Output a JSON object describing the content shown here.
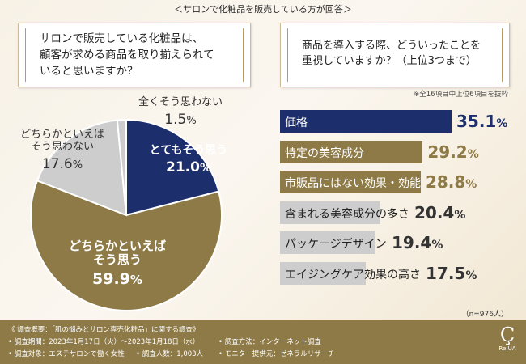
{
  "header": "＜サロンで化粧品を販売している方が回答＞",
  "question_left": {
    "lines": [
      "サロンで販売している化粧品は、",
      "顧客が求める商品を取り揃えられて",
      "いると思いますか？"
    ]
  },
  "question_right": {
    "lines": [
      "商品を導入する際、どういったことを",
      "重視していますか？（上位3つまで）"
    ]
  },
  "note": "※全16項目中上位6項目を抜粋",
  "colors": {
    "navy": "#1c2f6c",
    "gold": "#8e7a47",
    "gray": "#cdcdcd"
  },
  "chart_data": [
    {
      "type": "pie",
      "slices": [
        {
          "label": "とてもそう思う",
          "value": 21.0,
          "value_text": "21.0",
          "color": "navy"
        },
        {
          "label": "どちらかといえばそう思う",
          "label_lines": [
            "どちらかといえば",
            "そう思う"
          ],
          "value": 59.9,
          "value_text": "59.9",
          "color": "gold"
        },
        {
          "label": "どちらかといえばそう思わない",
          "label_lines": [
            "どちらかといえば",
            "そう思わない"
          ],
          "value": 17.6,
          "value_text": "17.6",
          "color": "gray"
        },
        {
          "label": "全くそう思わない",
          "value": 1.5,
          "value_text": "1.5",
          "color": "gray"
        }
      ],
      "start_angle_deg": 0,
      "direction": "clockwise",
      "percent_sign": "%"
    },
    {
      "type": "bar",
      "orientation": "horizontal",
      "categories": [
        "価格",
        "特定の美容成分",
        "市販品にはない効果・効能",
        "含まれる美容成分の多さ",
        "パッケージデザイン",
        "エイジングケア効果の高さ"
      ],
      "values": [
        35.1,
        29.2,
        28.8,
        20.4,
        19.4,
        17.5
      ],
      "value_texts": [
        "35.1",
        "29.2",
        "28.8",
        "20.4",
        "19.4",
        "17.5"
      ],
      "colors": [
        "navy",
        "gold",
        "gold",
        "gray",
        "gray",
        "gray"
      ],
      "percent_sign": "%",
      "xlim": [
        0,
        35.1
      ]
    }
  ],
  "n_count": "（n=976人）",
  "footer": {
    "title": "《 調査概要：「肌の悩みとサロン専売化粧品」に関する調査》",
    "period": "• 調査期間：2023年1月17日（火）〜2023年1月18日（水）",
    "method": "• 調査方法：インターネット調査",
    "target": "• 調査対象：エステサロンで働く女性",
    "people": "• 調査人数：1,003人",
    "monitor": "• モニター提供元：ゼネラルリサーチ",
    "logo_text": "Re:UA"
  }
}
